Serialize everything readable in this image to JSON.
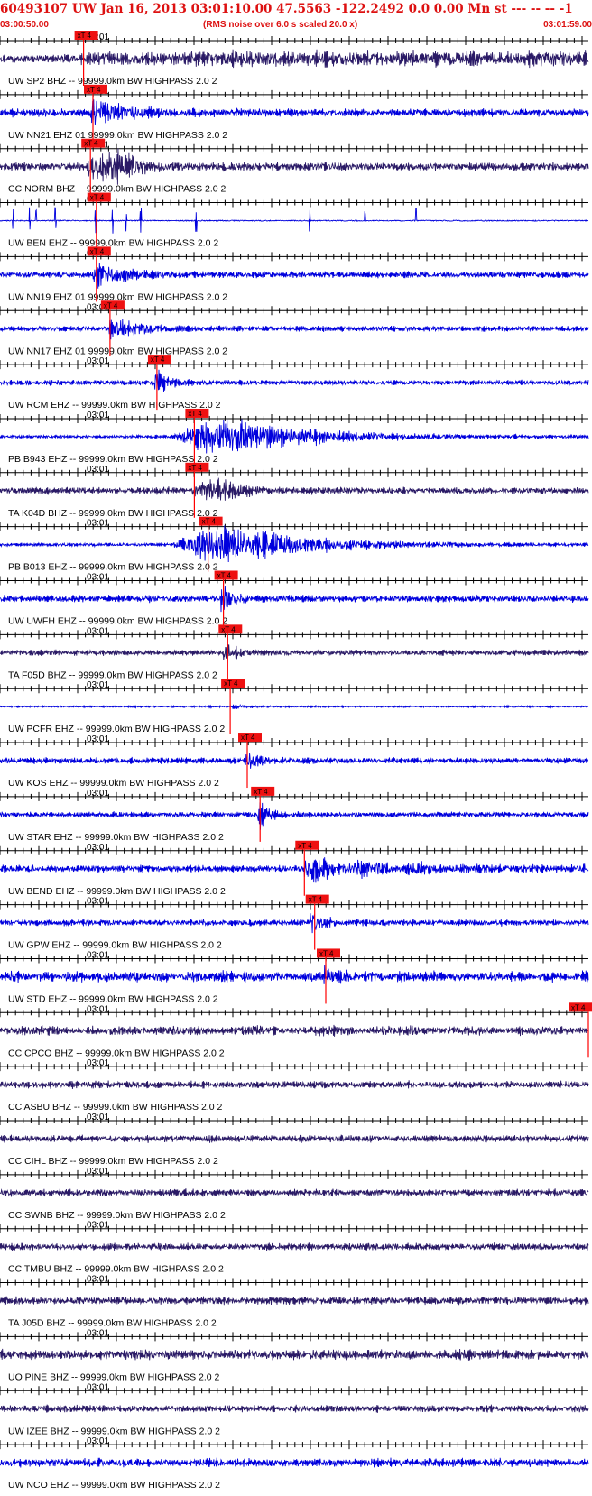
{
  "header": {
    "title": "60493107 UW Jan 16, 2013 03:01:10.00   47.5563 -122.2492  0.0 0.00 Mn st --- -- --  -1",
    "start_time": "03:00:50.00",
    "note": "(RMS noise over 6.0 s scaled 20.0 x)",
    "end_time": "03:01:59.00"
  },
  "colors": {
    "title": "#dd1111",
    "pick_box": "#ee1111",
    "pick_line": "#ff0000",
    "seis_blue": "#0000dd",
    "seis_dark": "#2a1a66",
    "axis": "#000000"
  },
  "chart_data": {
    "type": "line",
    "title": "60493107 UW Jan 16, 2013 03:01:10.00   47.5563 -122.2492  0.0 0.00 Mn st --- -- --  -1",
    "x_range": [
      "03:00:50.00",
      "03:01:59.00"
    ],
    "x_unit": "seconds after 03:00:50.00",
    "x_span_s": 69,
    "tick_label": "03:01",
    "tick_label_at_s": 10,
    "pick_label": "xT 4",
    "grid": false,
    "series": [
      {
        "label": "UW SP2 BHZ -- 99999.0km BW  HIGHPASS  2.0  2",
        "color": "blue_dark",
        "pick_s": 9.8,
        "onset_s": 9.5,
        "shape": "continuous",
        "amp": 0.55,
        "base": 0.55
      },
      {
        "label": "UW NN21 EHZ 01 99999.0km BW  HIGHPASS  2.0  2",
        "color": "blue",
        "pick_s": 10.9,
        "onset_s": 10.6,
        "shape": "burst",
        "amp": 0.95,
        "base": 0.28
      },
      {
        "label": "CC NORM BHZ -- 99999.0km BW  HIGHPASS  2.0  2",
        "color": "dark",
        "pick_s": 10.6,
        "onset_s": 10.3,
        "shape": "emergent",
        "amp": 0.9,
        "base": 0.3
      },
      {
        "label": "UW BEN EHZ -- 99999.0km BW  HIGHPASS  2.0  2",
        "color": "blue",
        "pick_s": 11.3,
        "onset_s": 11.2,
        "shape": "spikes",
        "amp": 0.7,
        "base": 0.03
      },
      {
        "label": "UW NN19 EHZ 01 99999.0km BW  HIGHPASS  2.0  2",
        "color": "blue",
        "pick_s": 11.3,
        "onset_s": 10.8,
        "shape": "burst",
        "amp": 0.9,
        "base": 0.22
      },
      {
        "label": "UW NN17 EHZ 01 99999.0km BW  HIGHPASS  2.0  2",
        "color": "blue",
        "pick_s": 12.9,
        "onset_s": 12.8,
        "shape": "burst",
        "amp": 0.75,
        "base": 0.2
      },
      {
        "label": "UW RCM EHZ -- 99999.0km BW  HIGHPASS  2.0  2",
        "color": "blue",
        "pick_s": 18.4,
        "onset_s": 18.4,
        "shape": "impulse",
        "amp": 1.0,
        "base": 0.18
      },
      {
        "label": "PB B943 EHZ -- 99999.0km BW  HIGHPASS  2.0  2",
        "color": "blue",
        "pick_s": 22.8,
        "onset_s": 20.0,
        "shape": "big",
        "amp": 1.3,
        "base": 0.12
      },
      {
        "label": "TA K04D BHZ -- 99999.0km BW  HIGHPASS  2.0  2",
        "color": "dark",
        "pick_s": 22.8,
        "onset_s": 22.5,
        "shape": "emergent",
        "amp": 0.6,
        "base": 0.25
      },
      {
        "label": "PB B013 EHZ -- 99999.0km BW  HIGHPASS  2.0  2",
        "color": "blue",
        "pick_s": 24.4,
        "onset_s": 20.0,
        "shape": "big",
        "amp": 1.3,
        "base": 0.12
      },
      {
        "label": "UW UWFH EHZ -- 99999.0km BW  HIGHPASS  2.0  2",
        "color": "blue",
        "pick_s": 26.2,
        "onset_s": 26.2,
        "shape": "impulse",
        "amp": 1.0,
        "base": 0.25
      },
      {
        "label": "TA F05D BHZ -- 99999.0km BW  HIGHPASS  2.0  2",
        "color": "dark",
        "pick_s": 26.7,
        "onset_s": 26.4,
        "shape": "impulse",
        "amp": 0.65,
        "base": 0.2
      },
      {
        "label": "UW PCFR EHZ -- 99999.0km BW  HIGHPASS  2.0  2",
        "color": "blue",
        "pick_s": 27.0,
        "onset_s": 27.2,
        "shape": "quiet",
        "amp": 0.2,
        "base": 0.06
      },
      {
        "label": "UW KOS EHZ -- 99999.0km BW  HIGHPASS  2.0  2",
        "color": "blue",
        "pick_s": 29.0,
        "onset_s": 29.0,
        "shape": "impulse",
        "amp": 0.7,
        "base": 0.22
      },
      {
        "label": "UW STAR EHZ -- 99999.0km BW  HIGHPASS  2.0  2",
        "color": "blue",
        "pick_s": 30.5,
        "onset_s": 30.5,
        "shape": "impulse",
        "amp": 0.75,
        "base": 0.2
      },
      {
        "label": "UW BEND EHZ -- 99999.0km BW  HIGHPASS  2.0  2",
        "color": "blue",
        "pick_s": 35.7,
        "onset_s": 35.5,
        "shape": "bend",
        "amp": 0.9,
        "base": 0.25
      },
      {
        "label": "UW GPW EHZ -- 99999.0km BW  HIGHPASS  2.0  2",
        "color": "blue",
        "pick_s": 36.9,
        "onset_s": 36.6,
        "shape": "impulse",
        "amp": 1.1,
        "base": 0.22
      },
      {
        "label": "UW STD EHZ -- 99999.0km BW  HIGHPASS  2.0  2",
        "color": "blue",
        "pick_s": 38.2,
        "onset_s": 37.9,
        "shape": "bursty",
        "amp": 0.55,
        "base": 0.35
      },
      {
        "label": "CC CPCO BHZ -- 99999.0km BW  HIGHPASS  2.0  2",
        "color": "dark",
        "pick_s": 69.0,
        "onset_s": 10.0,
        "shape": "noise",
        "amp": 0.3,
        "base": 0.3
      },
      {
        "label": "CC ASBU BHZ -- 99999.0km BW  HIGHPASS  2.0  2",
        "color": "dark",
        "pick_s": null,
        "onset_s": null,
        "shape": "noise",
        "amp": 0.25,
        "base": 0.25
      },
      {
        "label": "CC CIHL BHZ -- 99999.0km BW  HIGHPASS  2.0  2",
        "color": "dark",
        "pick_s": null,
        "onset_s": null,
        "shape": "noise",
        "amp": 0.25,
        "base": 0.25
      },
      {
        "label": "CC SWNB BHZ -- 99999.0km BW  HIGHPASS  2.0  2",
        "color": "dark",
        "pick_s": null,
        "onset_s": null,
        "shape": "noise",
        "amp": 0.25,
        "base": 0.25
      },
      {
        "label": "CC TMBU BHZ -- 99999.0km BW  HIGHPASS  2.0  2",
        "color": "dark",
        "pick_s": null,
        "onset_s": null,
        "shape": "noise",
        "amp": 0.25,
        "base": 0.25
      },
      {
        "label": "TA J05D BHZ -- 99999.0km BW  HIGHPASS  2.0  2",
        "color": "dark",
        "pick_s": null,
        "onset_s": null,
        "shape": "noise",
        "amp": 0.28,
        "base": 0.28
      },
      {
        "label": "UO PINE BHZ -- 99999.0km BW  HIGHPASS  2.0  2",
        "color": "dark",
        "pick_s": null,
        "onset_s": null,
        "shape": "noise",
        "amp": 0.35,
        "base": 0.35
      },
      {
        "label": "UW IZEE BHZ -- 99999.0km BW  HIGHPASS  2.0  2",
        "color": "dark",
        "pick_s": null,
        "onset_s": null,
        "shape": "noise",
        "amp": 0.25,
        "base": 0.25
      },
      {
        "label": "UW NCO EHZ -- 99999.0km BW  HIGHPASS  2.0  2",
        "color": "blue",
        "pick_s": null,
        "onset_s": null,
        "shape": "noise",
        "amp": 0.3,
        "base": 0.3
      }
    ]
  }
}
